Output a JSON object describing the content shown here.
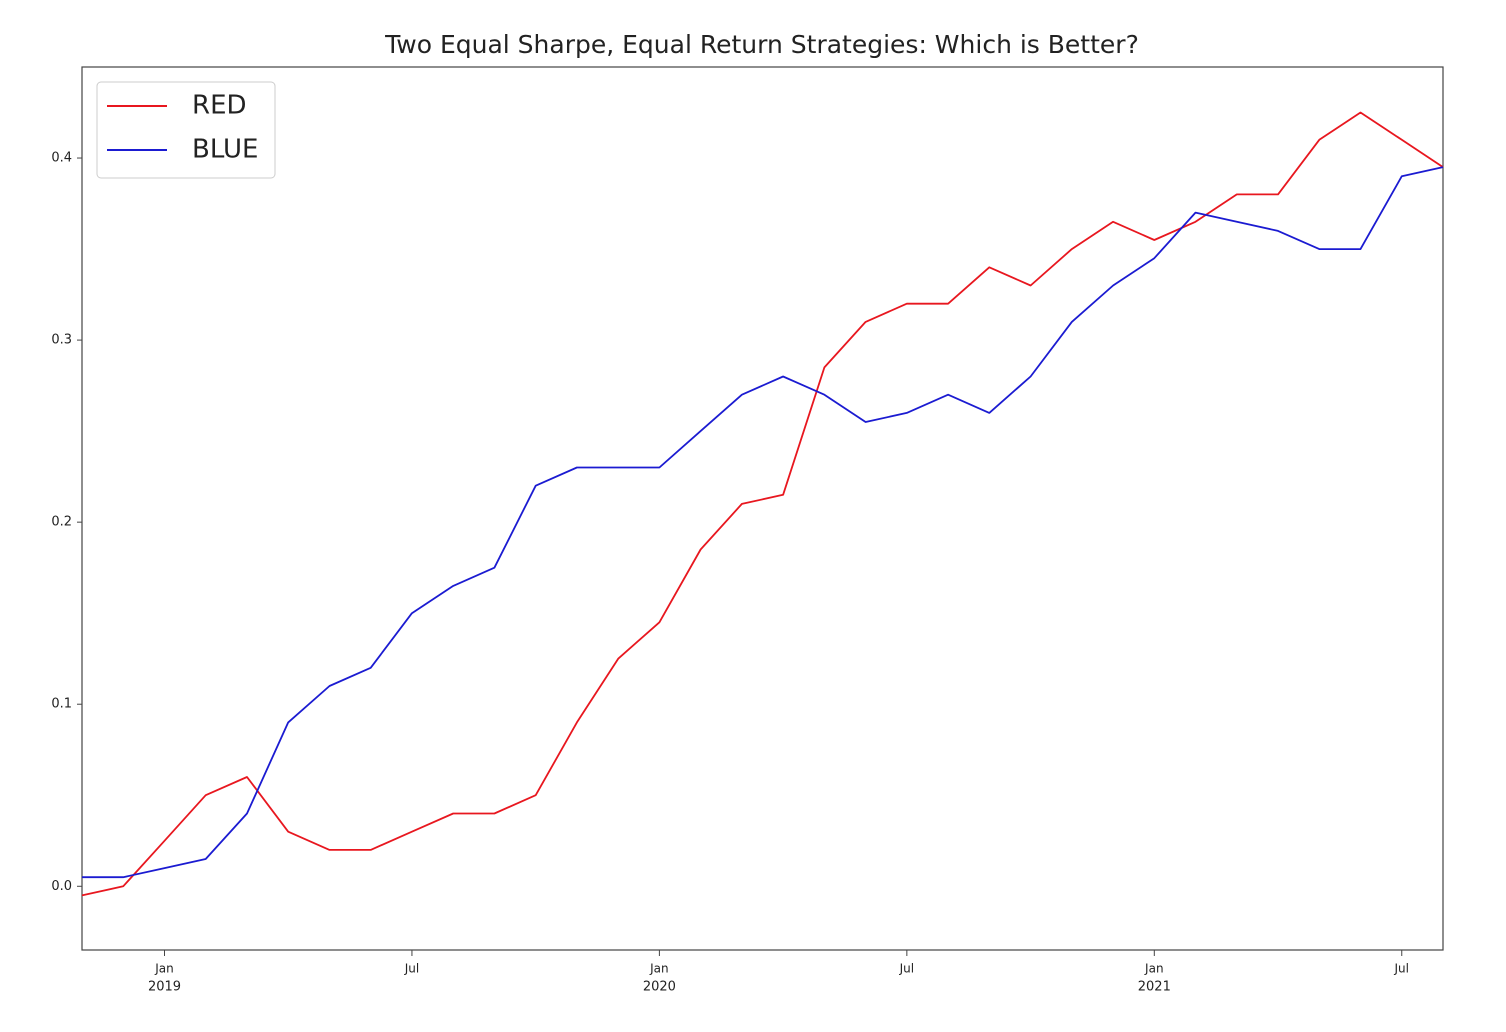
{
  "chart_data": {
    "type": "line",
    "title": "Two Equal Sharpe, Equal Return Strategies: Which is Better?",
    "x": [
      "2018-11",
      "2018-12",
      "2019-01",
      "2019-02",
      "2019-03",
      "2019-04",
      "2019-05",
      "2019-06",
      "2019-07",
      "2019-08",
      "2019-09",
      "2019-10",
      "2019-11",
      "2019-12",
      "2020-01",
      "2020-02",
      "2020-03",
      "2020-04",
      "2020-05",
      "2020-06",
      "2020-07",
      "2020-08",
      "2020-09",
      "2020-10",
      "2020-11",
      "2020-12",
      "2021-01",
      "2021-02",
      "2021-03",
      "2021-04",
      "2021-05",
      "2021-06",
      "2021-07",
      "2021-08"
    ],
    "series": [
      {
        "name": "RED",
        "color": "#e8171f",
        "values": [
          -0.005,
          0.0,
          0.025,
          0.05,
          0.06,
          0.03,
          0.02,
          0.02,
          0.03,
          0.04,
          0.04,
          0.05,
          0.09,
          0.125,
          0.145,
          0.185,
          0.21,
          0.215,
          0.285,
          0.31,
          0.32,
          0.32,
          0.34,
          0.33,
          0.35,
          0.365,
          0.355,
          0.365,
          0.38,
          0.38,
          0.41,
          0.425,
          0.41,
          0.395
        ]
      },
      {
        "name": "BLUE",
        "color": "#1b1bd1",
        "values": [
          0.005,
          0.005,
          0.01,
          0.015,
          0.04,
          0.09,
          0.11,
          0.12,
          0.15,
          0.165,
          0.175,
          0.22,
          0.23,
          0.23,
          0.23,
          0.25,
          0.27,
          0.28,
          0.27,
          0.255,
          0.26,
          0.27,
          0.26,
          0.28,
          0.31,
          0.33,
          0.345,
          0.37,
          0.365,
          0.36,
          0.35,
          0.35,
          0.39,
          0.395
        ]
      }
    ],
    "xlim": [
      "2018-11",
      "2021-08"
    ],
    "xticks": [
      {
        "value": "2019-01",
        "label": "Jan",
        "year": "2019"
      },
      {
        "value": "2019-07",
        "label": "Jul"
      },
      {
        "value": "2020-01",
        "label": "Jan",
        "year": "2020"
      },
      {
        "value": "2020-07",
        "label": "Jul"
      },
      {
        "value": "2021-01",
        "label": "Jan",
        "year": "2021"
      },
      {
        "value": "2021-07",
        "label": "Jul"
      }
    ],
    "ylim": [
      -0.035,
      0.45
    ],
    "yticks": [
      {
        "value": 0,
        "label": "0.0"
      },
      0.1,
      0.2,
      0.3,
      0.4
    ],
    "legend": "upper left"
  }
}
